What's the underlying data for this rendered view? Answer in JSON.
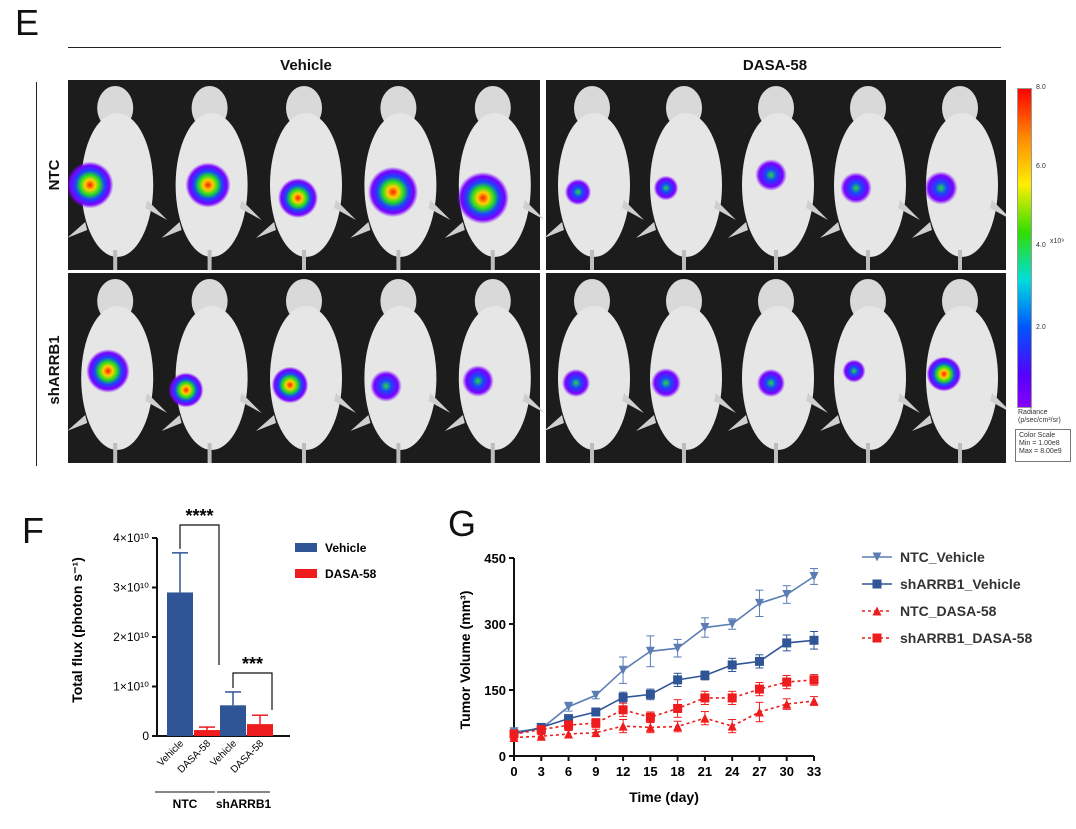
{
  "panel_e": {
    "letter": "E",
    "col_headers": [
      "Vehicle",
      "DASA-58"
    ],
    "row_labels": [
      "NTC",
      "shARRB1"
    ],
    "colorbar": {
      "ticks": [
        "8.0",
        "6.0",
        "4.0",
        "2.0"
      ],
      "multiplier": "x10⁹",
      "title_line1": "Radiance",
      "title_line2": "(p/sec/cm²/sr)",
      "scale_line1": "Color Scale",
      "scale_line2": "Min = 1.00e8",
      "scale_line3": "Max = 8.00e9"
    },
    "mice": {
      "ntc_vehicle": [
        0.85,
        0.8,
        0.65,
        0.95,
        1.0
      ],
      "ntc_dasa": [
        0.25,
        0.2,
        0.4,
        0.4,
        0.45
      ],
      "sharrb1_vehicle": [
        0.75,
        0.5,
        0.55,
        0.4,
        0.4
      ],
      "sharrb1_dasa": [
        0.3,
        0.35,
        0.3,
        0.15,
        0.5
      ]
    }
  },
  "chart_data": [
    {
      "type": "bar",
      "panel_letter": "F",
      "ylabel": "Total flux (photon s⁻¹)",
      "yticks": [
        "0",
        "1×10¹⁰",
        "2×10¹⁰",
        "3×10¹⁰",
        "4×10¹⁰"
      ],
      "ylim": [
        0,
        40000000000.0
      ],
      "groups": [
        "NTC",
        "shARRB1"
      ],
      "xticklabels": [
        "Vehicle",
        "DASA-58",
        "Vehicle",
        "DASA-58"
      ],
      "series": [
        {
          "name": "Vehicle",
          "color": "#2f5597",
          "values": [
            29000000000.0,
            6200000000.0
          ],
          "errors": [
            8000000000.0,
            2700000000.0
          ]
        },
        {
          "name": "DASA-58",
          "color": "#ee1c1c",
          "values": [
            1200000000.0,
            2400000000.0
          ],
          "errors": [
            600000000.0,
            1800000000.0
          ]
        }
      ],
      "significance": [
        "****",
        "***"
      ],
      "legend_position": "right"
    },
    {
      "type": "line",
      "panel_letter": "G",
      "xlabel": "Time (day)",
      "ylabel": "Tumor Volume (mm³)",
      "x": [
        0,
        3,
        6,
        9,
        12,
        15,
        18,
        21,
        24,
        27,
        30,
        33
      ],
      "xlim": [
        0,
        33
      ],
      "ylim": [
        0,
        450
      ],
      "yticks": [
        0,
        150,
        300,
        450
      ],
      "series": [
        {
          "name": "NTC_Vehicle",
          "color": "#5b7db4",
          "marker": "tri-down",
          "dashed": false,
          "values": [
            55,
            62,
            112,
            138,
            195,
            238,
            245,
            292,
            300,
            347,
            367,
            408
          ],
          "errors": [
            5,
            5,
            10,
            8,
            30,
            35,
            20,
            22,
            12,
            30,
            20,
            18
          ]
        },
        {
          "name": "shARRB1_Vehicle",
          "color": "#2f5597",
          "marker": "square",
          "dashed": false,
          "values": [
            50,
            65,
            85,
            100,
            133,
            140,
            173,
            183,
            207,
            215,
            257,
            263
          ],
          "errors": [
            5,
            5,
            8,
            8,
            12,
            12,
            15,
            10,
            15,
            15,
            18,
            20
          ]
        },
        {
          "name": "NTC_DASA-58",
          "color": "#ee1c1c",
          "marker": "tri-up",
          "dashed": true,
          "values": [
            42,
            45,
            50,
            53,
            68,
            65,
            67,
            86,
            68,
            100,
            118,
            125
          ],
          "errors": [
            4,
            4,
            8,
            8,
            15,
            12,
            12,
            15,
            15,
            22,
            12,
            10
          ]
        },
        {
          "name": "shARRB1_DASA-58",
          "color": "#ee1c1c",
          "marker": "square",
          "dashed": true,
          "values": [
            50,
            60,
            70,
            75,
            105,
            88,
            108,
            132,
            132,
            152,
            168,
            173
          ],
          "errors": [
            5,
            5,
            10,
            10,
            15,
            12,
            20,
            15,
            15,
            15,
            15,
            12
          ]
        }
      ],
      "legend_position": "right"
    }
  ]
}
